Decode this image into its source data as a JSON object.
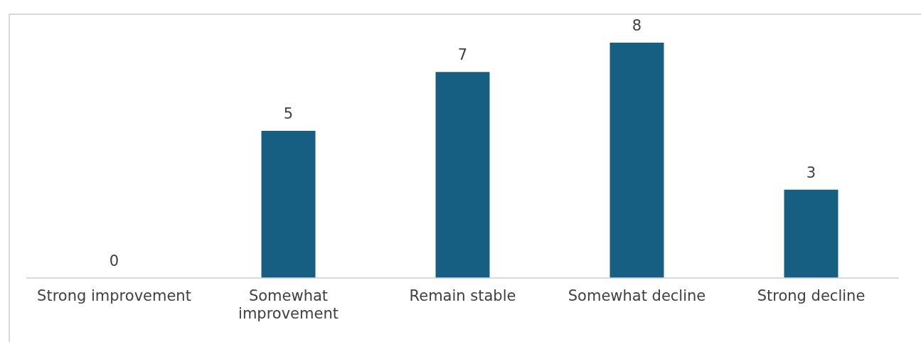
{
  "chart_data": {
    "type": "bar",
    "categories": [
      "Strong improvement",
      "Somewhat improvement",
      "Remain stable",
      "Somewhat decline",
      "Strong decline"
    ],
    "values": [
      0,
      5,
      7,
      8,
      3
    ],
    "color": "#165f82",
    "data_labels": true,
    "grid": false,
    "legend": false
  }
}
